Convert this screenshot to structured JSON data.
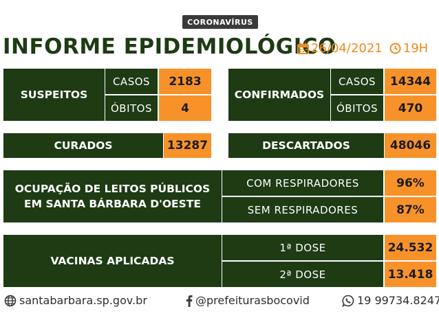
{
  "header": {
    "badge": "CORONAVÍRUS",
    "title": "INFORME EPIDEMIOLÓGICO",
    "date": "26/04/2021",
    "time": "19H",
    "accent_color": "#f7922a",
    "dark_color": "#1e3b14"
  },
  "suspeitos": {
    "label": "SUSPEITOS",
    "casos_label": "CASOS",
    "casos_value": "2183",
    "obitos_label": "ÓBITOS",
    "obitos_value": "4"
  },
  "confirmados": {
    "label": "CONFIRMADOS",
    "casos_label": "CASOS",
    "casos_value": "14344",
    "obitos_label": "ÓBITOS",
    "obitos_value": "470"
  },
  "curados": {
    "label": "CURADOS",
    "value": "13287"
  },
  "descartados": {
    "label": "DESCARTADOS",
    "value": "48046"
  },
  "ocupacao": {
    "label_line1": "OCUPAÇÃO DE LEITOS PÚBLICOS",
    "label_line2": "EM SANTA BÁRBARA D'OESTE",
    "com_label": "COM RESPIRADORES",
    "com_value": "96%",
    "sem_label": "SEM RESPIRADORES",
    "sem_value": "87%"
  },
  "vacinas": {
    "label": "VACINAS APLICADAS",
    "dose1_label": "1ª DOSE",
    "dose1_value": "24.532",
    "dose2_label": "2ª DOSE",
    "dose2_value": "13.418"
  },
  "footer": {
    "website": "santabarbara.sp.gov.br",
    "social": "@prefeiturasbocovid",
    "phone": "19 99734.8247",
    "icons": [
      "globe-icon",
      "facebook-icon",
      "whatsapp-icon"
    ]
  }
}
